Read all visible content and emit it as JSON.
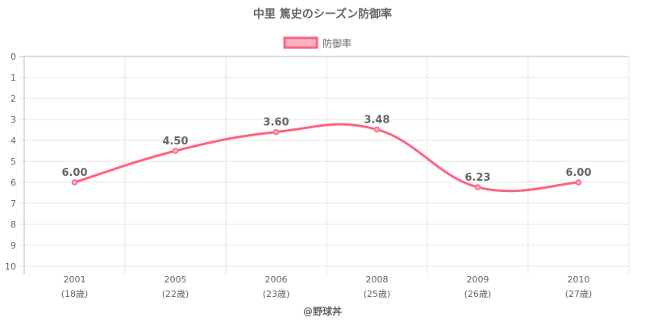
{
  "chart_data": {
    "type": "line",
    "title": "中里 篤史のシーズン防御率",
    "categories": [
      "2001",
      "2005",
      "2006",
      "2008",
      "2009",
      "2010"
    ],
    "sublabels": [
      "(18歳)",
      "(22歳)",
      "(23歳)",
      "(25歳)",
      "(26歳)",
      "(27歳)"
    ],
    "series": [
      {
        "name": "防御率",
        "values": [
          6.0,
          4.5,
          3.6,
          3.48,
          6.23,
          6.0
        ],
        "labels": [
          "6.00",
          "4.50",
          "3.60",
          "3.48",
          "6.23",
          "6.00"
        ]
      }
    ],
    "ylim": [
      0,
      10
    ],
    "y_reversed": true,
    "yticks": [
      "0",
      "1",
      "2",
      "3",
      "4",
      "5",
      "6",
      "7",
      "8",
      "9",
      "10"
    ],
    "grid": true,
    "legend": "top",
    "line_color": "#ff6384",
    "fill_color": "#ffb1c1"
  },
  "footer": "@野球丼"
}
